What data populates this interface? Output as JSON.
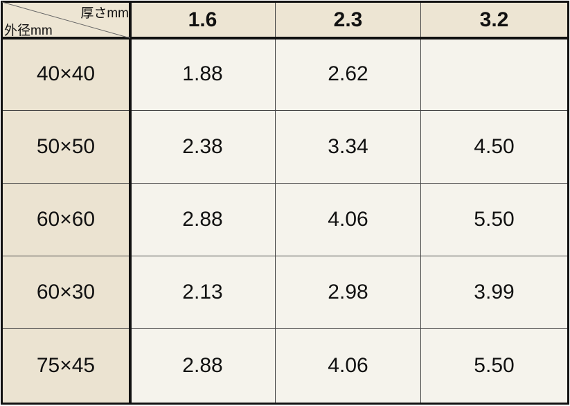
{
  "table": {
    "corner": {
      "col_label": "厚さmm",
      "row_label": "外径mm"
    },
    "columns": [
      "1.6",
      "2.3",
      "3.2"
    ],
    "rows": [
      {
        "label": "40×40",
        "cells": [
          "1.88",
          "2.62",
          null
        ]
      },
      {
        "label": "50×50",
        "cells": [
          "2.38",
          "3.34",
          "4.50"
        ]
      },
      {
        "label": "60×60",
        "cells": [
          "2.88",
          "4.06",
          "5.50"
        ]
      },
      {
        "label": "60×30",
        "cells": [
          "2.13",
          "2.98",
          "3.99"
        ]
      },
      {
        "label": "75×45",
        "cells": [
          "2.88",
          "4.06",
          "5.50"
        ]
      }
    ]
  }
}
